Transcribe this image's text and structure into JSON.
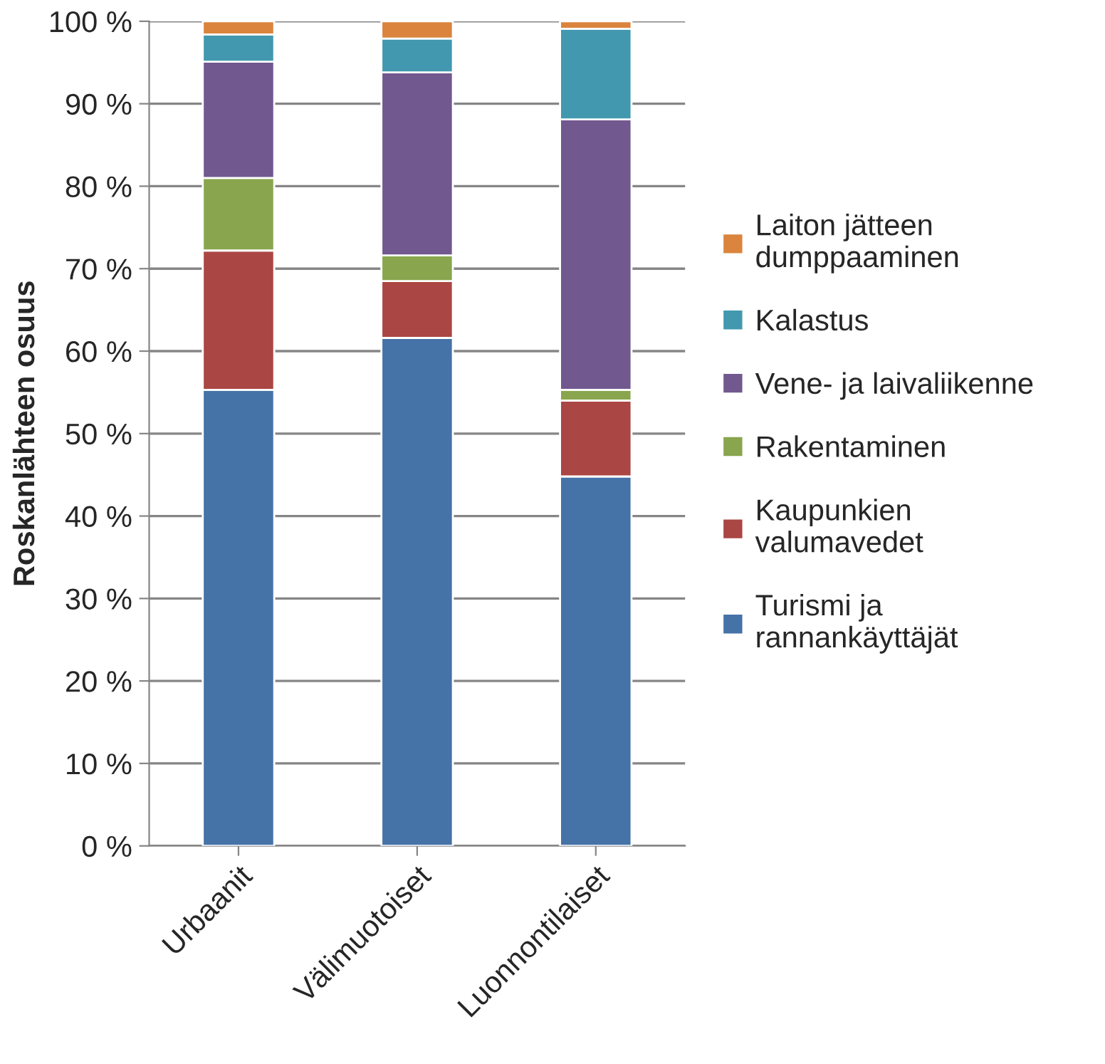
{
  "chart_data": {
    "type": "bar",
    "stacked": true,
    "ylabel": "Roskanlähteen osuus",
    "categories": [
      "Urbaanit",
      "Välimuotoiset",
      "Luonnontilaiset"
    ],
    "series": [
      {
        "name": "Turismi ja\nrannankäyttäjät",
        "color": "#4572a7",
        "values": [
          55.3,
          61.6,
          44.8
        ]
      },
      {
        "name": "Kaupunkien\nvalumavedet",
        "color": "#aa4643",
        "values": [
          16.9,
          6.9,
          9.2
        ]
      },
      {
        "name": "Rakentaminen",
        "color": "#89a54e",
        "values": [
          8.8,
          3.1,
          1.3
        ]
      },
      {
        "name": "Vene- ja laivaliikenne",
        "color": "#71588f",
        "values": [
          14.1,
          22.2,
          32.8
        ]
      },
      {
        "name": "Kalastus",
        "color": "#4198af",
        "values": [
          3.3,
          4.1,
          11.0
        ]
      },
      {
        "name": "Laiton jätteen\ndumppaaminen",
        "color": "#db843d",
        "values": [
          1.6,
          2.1,
          0.9
        ]
      }
    ],
    "ylim": [
      0,
      100
    ],
    "yticks": [
      {
        "value": 0,
        "label": "0 %"
      },
      {
        "value": 10,
        "label": "10 %"
      },
      {
        "value": 20,
        "label": "20 %"
      },
      {
        "value": 30,
        "label": "30 %"
      },
      {
        "value": 40,
        "label": "40 %"
      },
      {
        "value": 50,
        "label": "50 %"
      },
      {
        "value": 60,
        "label": "60 %"
      },
      {
        "value": 70,
        "label": "70 %"
      },
      {
        "value": 80,
        "label": "80 %"
      },
      {
        "value": 90,
        "label": "90 %"
      },
      {
        "value": 100,
        "label": "100 %"
      }
    ],
    "grid": "y",
    "legend": "right"
  }
}
